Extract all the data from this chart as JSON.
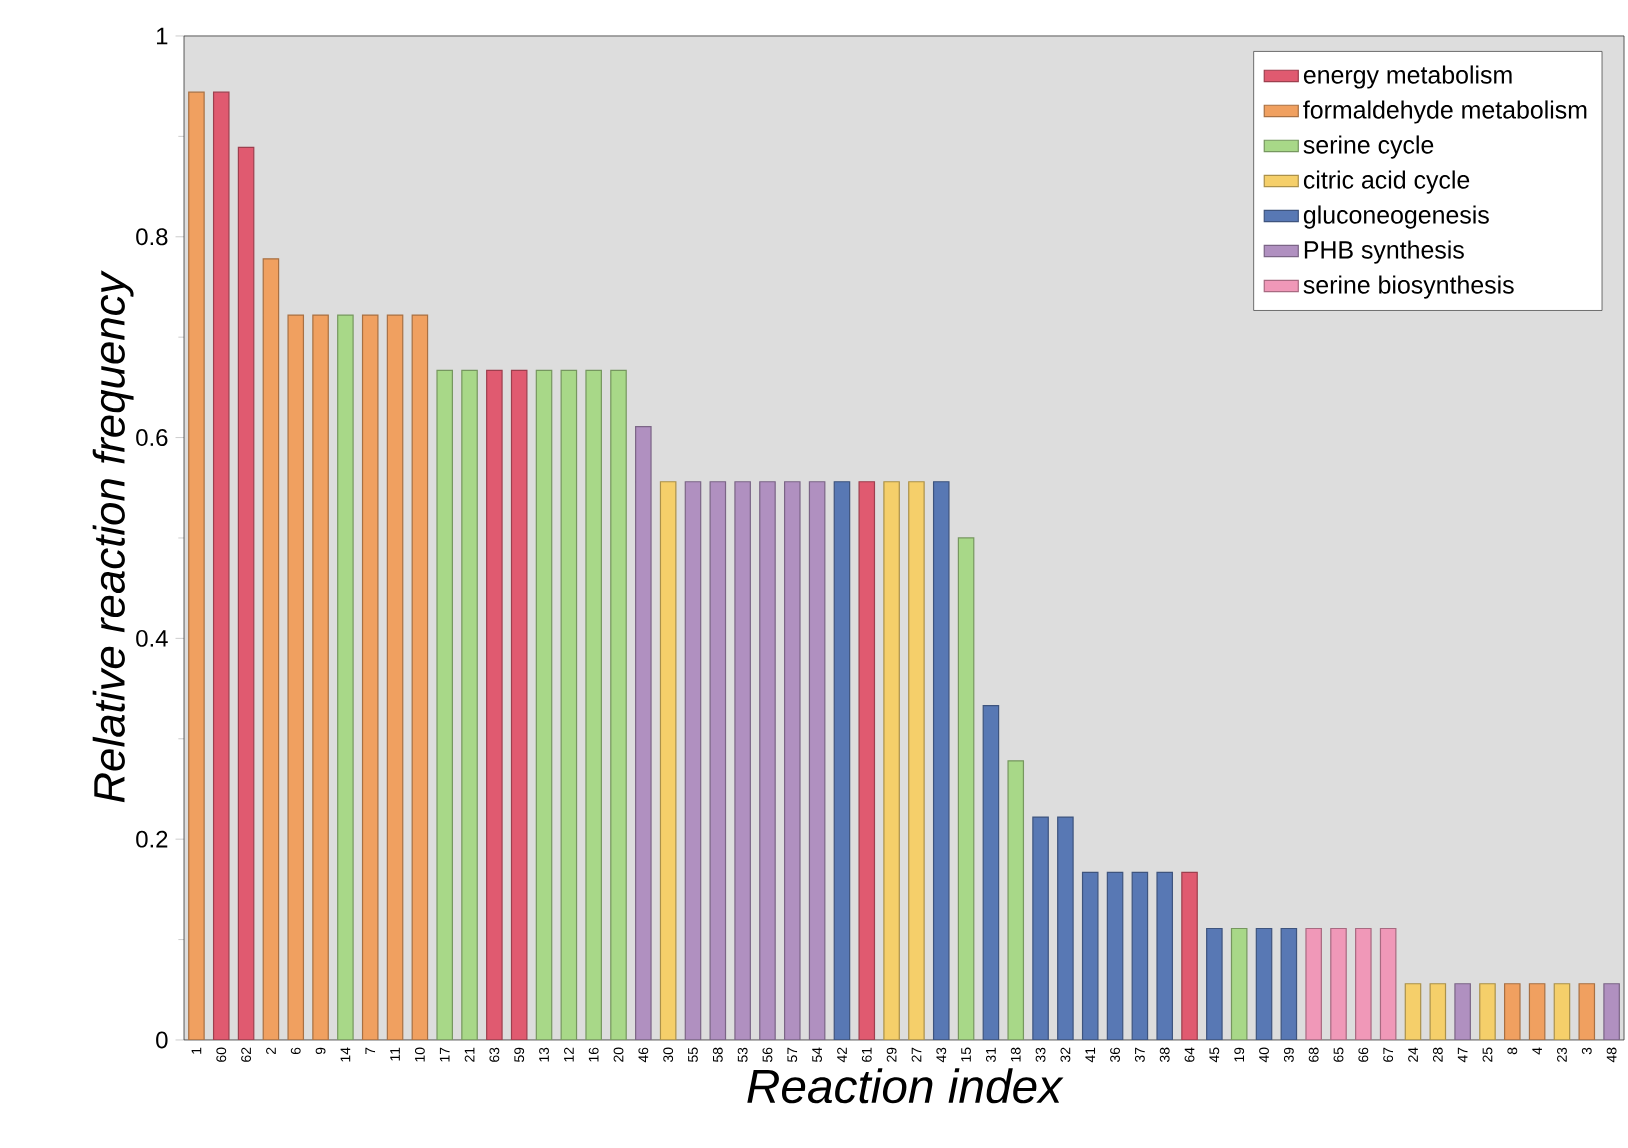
{
  "chart_data": {
    "type": "bar",
    "stacked": true,
    "xlabel": "Reaction index",
    "ylabel": "Relative reaction frequency",
    "categories": [
      "1",
      "60",
      "62",
      "2",
      "6",
      "9",
      "14",
      "7",
      "11",
      "10",
      "17",
      "21",
      "63",
      "59",
      "13",
      "12",
      "16",
      "20",
      "46",
      "30",
      "55",
      "58",
      "53",
      "56",
      "57",
      "54",
      "42",
      "61",
      "29",
      "27",
      "43",
      "15",
      "31",
      "18",
      "33",
      "32",
      "41",
      "36",
      "37",
      "38",
      "64",
      "45",
      "19",
      "40",
      "39",
      "68",
      "65",
      "66",
      "67",
      "24",
      "28",
      "47",
      "25",
      "8",
      "4",
      "23",
      "3",
      "48"
    ],
    "ylim": [
      0,
      1
    ],
    "yticks": [
      0,
      {
        "value": 0.2,
        "label": "0.2"
      },
      {
        "value": 0.4,
        "label": "0.4"
      },
      {
        "value": 0.6,
        "label": "0.6"
      },
      {
        "value": 0.8,
        "label": "0.8"
      },
      1
    ],
    "grid": false,
    "legend": "top right",
    "series": [
      {
        "name": "energy metabolism",
        "color": "#e05a70",
        "values": [
          null,
          0.944,
          0.889,
          null,
          null,
          null,
          null,
          null,
          null,
          null,
          null,
          null,
          0.667,
          0.667,
          null,
          null,
          null,
          null,
          null,
          null,
          null,
          null,
          null,
          null,
          null,
          null,
          null,
          0.556,
          null,
          null,
          null,
          null,
          null,
          null,
          null,
          null,
          null,
          null,
          null,
          null,
          0.167,
          null,
          null,
          null,
          null,
          null,
          null,
          null,
          null,
          null,
          null,
          null,
          null,
          null,
          null,
          null,
          null,
          null
        ]
      },
      {
        "name": "formaldehyde metabolism",
        "color": "#f0a060",
        "values": [
          0.944,
          null,
          null,
          0.778,
          0.722,
          0.722,
          null,
          0.722,
          0.722,
          0.722,
          null,
          null,
          null,
          null,
          null,
          null,
          null,
          null,
          null,
          null,
          null,
          null,
          null,
          null,
          null,
          null,
          null,
          null,
          null,
          null,
          null,
          null,
          null,
          null,
          null,
          null,
          null,
          null,
          null,
          null,
          null,
          null,
          null,
          null,
          null,
          null,
          null,
          null,
          null,
          null,
          null,
          null,
          null,
          0.056,
          0.056,
          null,
          0.056,
          null
        ]
      },
      {
        "name": "serine cycle",
        "color": "#a8d888",
        "values": [
          null,
          null,
          null,
          null,
          null,
          null,
          0.722,
          null,
          null,
          null,
          0.667,
          0.667,
          null,
          null,
          0.667,
          0.667,
          0.667,
          0.667,
          null,
          null,
          null,
          null,
          null,
          null,
          null,
          null,
          null,
          null,
          null,
          null,
          null,
          0.5,
          null,
          0.278,
          null,
          null,
          null,
          null,
          null,
          null,
          null,
          null,
          0.111,
          null,
          null,
          null,
          null,
          null,
          null,
          null,
          null,
          null,
          null,
          null,
          null,
          null,
          null,
          null
        ]
      },
      {
        "name": "citric acid cycle",
        "color": "#f5cf6a",
        "values": [
          null,
          null,
          null,
          null,
          null,
          null,
          null,
          null,
          null,
          null,
          null,
          null,
          null,
          null,
          null,
          null,
          null,
          null,
          null,
          0.556,
          null,
          null,
          null,
          null,
          null,
          null,
          null,
          null,
          0.556,
          0.556,
          null,
          null,
          null,
          null,
          null,
          null,
          null,
          null,
          null,
          null,
          null,
          null,
          null,
          null,
          null,
          null,
          null,
          null,
          null,
          0.056,
          0.056,
          null,
          0.056,
          null,
          null,
          0.056,
          null,
          null
        ]
      },
      {
        "name": "gluconeogenesis",
        "color": "#5878b4",
        "values": [
          null,
          null,
          null,
          null,
          null,
          null,
          null,
          null,
          null,
          null,
          null,
          null,
          null,
          null,
          null,
          null,
          null,
          null,
          null,
          null,
          null,
          null,
          null,
          null,
          null,
          null,
          0.556,
          null,
          null,
          null,
          0.556,
          null,
          0.333,
          null,
          0.222,
          0.222,
          0.167,
          0.167,
          0.167,
          0.167,
          null,
          0.111,
          null,
          0.111,
          0.111,
          null,
          null,
          null,
          null,
          null,
          null,
          null,
          null,
          null,
          null,
          null,
          null,
          null
        ]
      },
      {
        "name": "PHB synthesis",
        "color": "#b090c0",
        "values": [
          null,
          null,
          null,
          null,
          null,
          null,
          null,
          null,
          null,
          null,
          null,
          null,
          null,
          null,
          null,
          null,
          null,
          null,
          0.611,
          null,
          0.556,
          0.556,
          0.556,
          0.556,
          0.556,
          0.556,
          null,
          null,
          null,
          null,
          null,
          null,
          null,
          null,
          null,
          null,
          null,
          null,
          null,
          null,
          null,
          null,
          null,
          null,
          null,
          null,
          null,
          null,
          null,
          null,
          null,
          0.056,
          null,
          null,
          null,
          null,
          null,
          0.056
        ]
      },
      {
        "name": "serine biosynthesis",
        "color": "#f098b8",
        "values": [
          null,
          null,
          null,
          null,
          null,
          null,
          null,
          null,
          null,
          null,
          null,
          null,
          null,
          null,
          null,
          null,
          null,
          null,
          null,
          null,
          null,
          null,
          null,
          null,
          null,
          null,
          null,
          null,
          null,
          null,
          null,
          null,
          null,
          null,
          null,
          null,
          null,
          null,
          null,
          null,
          null,
          null,
          null,
          null,
          null,
          0.111,
          0.111,
          0.111,
          0.111,
          null,
          null,
          null,
          null,
          null,
          null,
          null,
          null,
          null
        ]
      }
    ]
  }
}
